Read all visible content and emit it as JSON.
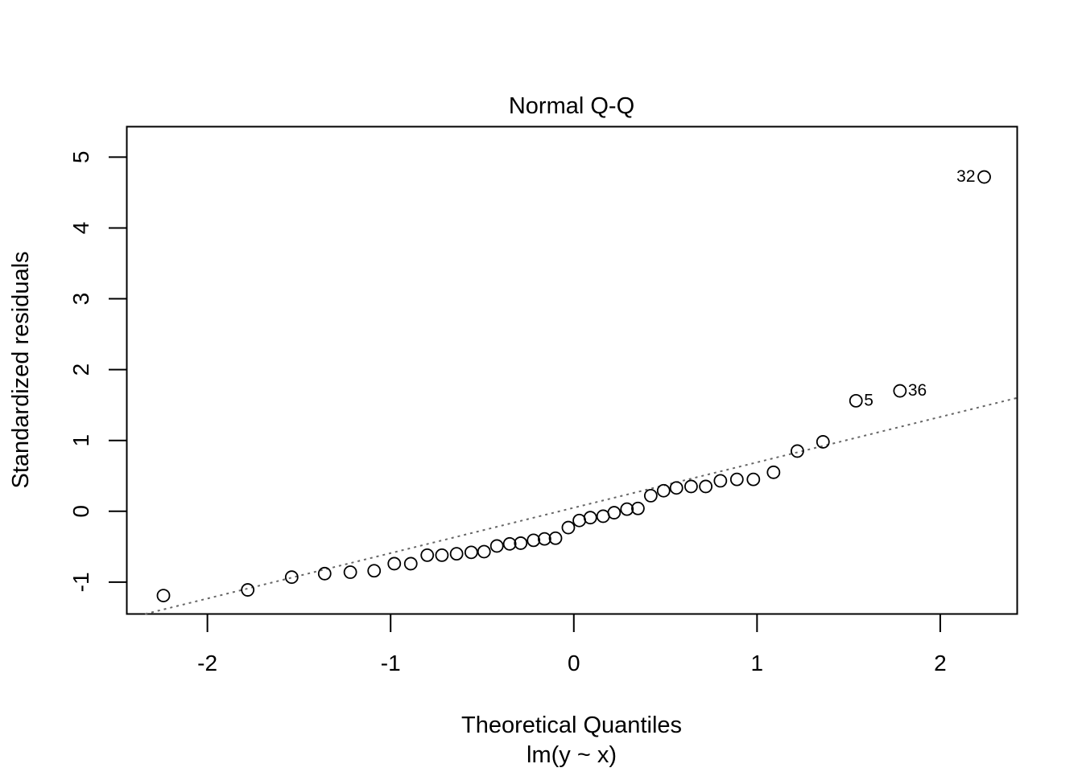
{
  "chart_data": {
    "type": "scatter",
    "title": "Normal Q-Q",
    "xlabel": "Theoretical Quantiles",
    "subtitle": "lm(y ~ x)",
    "ylabel": "Standardized residuals",
    "xlim": [
      -2.44,
      2.42
    ],
    "ylim": [
      -1.45,
      5.43
    ],
    "x_ticks": [
      -2,
      -1,
      0,
      1,
      2
    ],
    "y_ticks": [
      -1,
      0,
      1,
      2,
      3,
      4,
      5
    ],
    "x_tick_labels": [
      "-2",
      "-1",
      "0",
      "1",
      "2"
    ],
    "y_tick_labels": [
      "-1",
      "0",
      "1",
      "2",
      "3",
      "4",
      "5"
    ],
    "grid": false,
    "reference_line": {
      "style": "dotted",
      "color": "#666666",
      "intercept": 0.05,
      "slope": 0.641
    },
    "points": [
      {
        "x": -2.24,
        "y": -1.19
      },
      {
        "x": -1.78,
        "y": -1.11
      },
      {
        "x": -1.54,
        "y": -0.93
      },
      {
        "x": -1.36,
        "y": -0.88
      },
      {
        "x": -1.22,
        "y": -0.86
      },
      {
        "x": -1.09,
        "y": -0.84
      },
      {
        "x": -0.98,
        "y": -0.74
      },
      {
        "x": -0.89,
        "y": -0.74
      },
      {
        "x": -0.8,
        "y": -0.62
      },
      {
        "x": -0.72,
        "y": -0.62
      },
      {
        "x": -0.64,
        "y": -0.6
      },
      {
        "x": -0.56,
        "y": -0.58
      },
      {
        "x": -0.49,
        "y": -0.57
      },
      {
        "x": -0.42,
        "y": -0.49
      },
      {
        "x": -0.35,
        "y": -0.46
      },
      {
        "x": -0.29,
        "y": -0.45
      },
      {
        "x": -0.22,
        "y": -0.41
      },
      {
        "x": -0.16,
        "y": -0.39
      },
      {
        "x": -0.1,
        "y": -0.38
      },
      {
        "x": -0.03,
        "y": -0.23
      },
      {
        "x": 0.03,
        "y": -0.13
      },
      {
        "x": 0.09,
        "y": -0.09
      },
      {
        "x": 0.16,
        "y": -0.07
      },
      {
        "x": 0.22,
        "y": -0.02
      },
      {
        "x": 0.29,
        "y": 0.03
      },
      {
        "x": 0.35,
        "y": 0.04
      },
      {
        "x": 0.42,
        "y": 0.22
      },
      {
        "x": 0.49,
        "y": 0.29
      },
      {
        "x": 0.56,
        "y": 0.33
      },
      {
        "x": 0.64,
        "y": 0.35
      },
      {
        "x": 0.72,
        "y": 0.35
      },
      {
        "x": 0.8,
        "y": 0.43
      },
      {
        "x": 0.89,
        "y": 0.45
      },
      {
        "x": 0.98,
        "y": 0.45
      },
      {
        "x": 1.09,
        "y": 0.55
      },
      {
        "x": 1.22,
        "y": 0.85
      },
      {
        "x": 1.36,
        "y": 0.98
      },
      {
        "x": 1.54,
        "y": 1.56,
        "label": "5"
      },
      {
        "x": 1.78,
        "y": 1.7,
        "label": "36"
      },
      {
        "x": 2.24,
        "y": 4.72,
        "label": "32"
      }
    ]
  }
}
